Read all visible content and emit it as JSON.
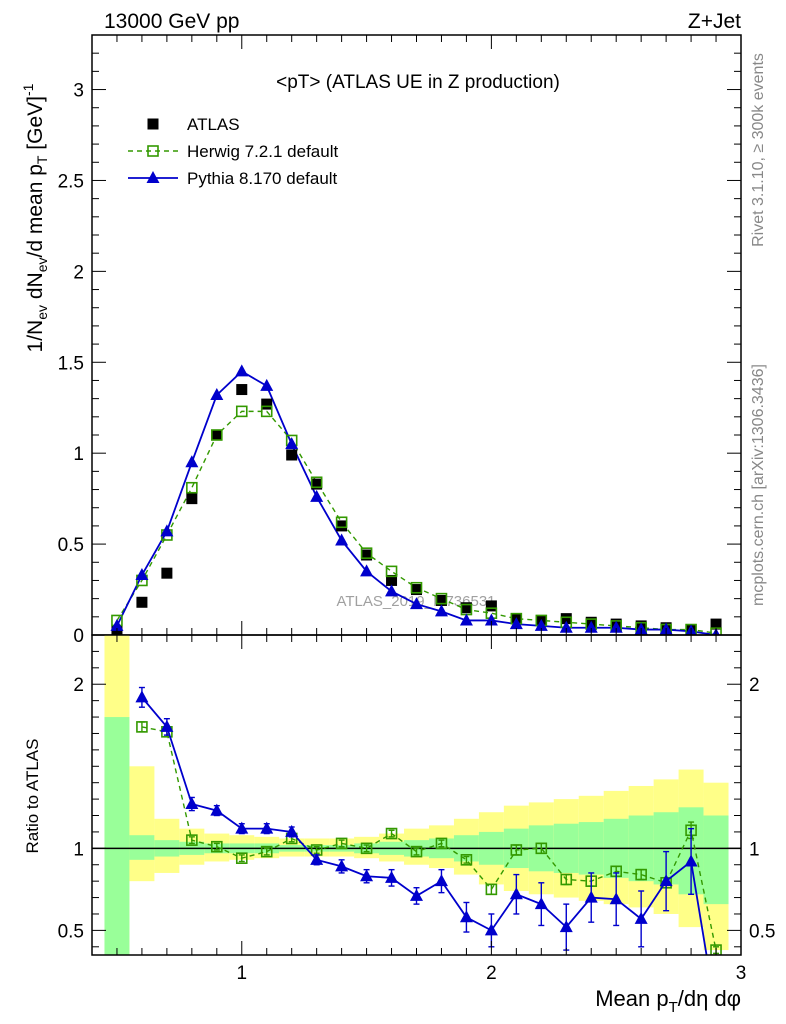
{
  "header": {
    "left": "13000 GeV pp",
    "right": "Z+Jet"
  },
  "side_text": {
    "rivet": "Rivet 3.1.10, ≥ 300k events",
    "mcplots": "mcplots.cern.ch [arXiv:1306.3436]"
  },
  "watermark": "ATLAS_2019_I1736531",
  "chart_data": [
    {
      "type": "scatter",
      "title": "<pT> (ATLAS UE in Z production)",
      "ylabel": "1/N_ev dN_ev/d mean p_T [GeV]^-1",
      "xlim": [
        0.4,
        3.0
      ],
      "ylim": [
        0,
        3.3
      ],
      "yticks": [
        0,
        0.5,
        1,
        1.5,
        2,
        2.5,
        3
      ],
      "ytick_labels": [
        "0",
        "0.5",
        "1",
        "1.5",
        "2",
        "2.5",
        "3"
      ],
      "legend": {
        "placement": "top-left",
        "entries": [
          "ATLAS",
          "Herwig 7.2.1 default",
          "Pythia 8.170 default"
        ]
      },
      "x": [
        0.5,
        0.6,
        0.7,
        0.8,
        0.9,
        1.0,
        1.1,
        1.2,
        1.3,
        1.4,
        1.5,
        1.6,
        1.7,
        1.8,
        1.9,
        2.0,
        2.1,
        2.2,
        2.3,
        2.4,
        2.5,
        2.6,
        2.7,
        2.8,
        2.9
      ],
      "series": [
        {
          "name": "ATLAS",
          "color": "#000000",
          "marker": "filled-square",
          "values": [
            0.02,
            0.18,
            0.34,
            0.75,
            1.1,
            1.35,
            1.27,
            0.99,
            0.83,
            0.6,
            0.44,
            0.3,
            0.25,
            0.19,
            0.15,
            0.16,
            0.09,
            0.08,
            0.09,
            0.07,
            0.06,
            0.05,
            0.04,
            0.03,
            0.06
          ]
        },
        {
          "name": "Herwig 7.2.1 default",
          "color": "#339900",
          "marker": "open-square",
          "line": "dashed",
          "values": [
            0.08,
            0.3,
            0.55,
            0.81,
            1.1,
            1.23,
            1.23,
            1.07,
            0.84,
            0.62,
            0.45,
            0.35,
            0.26,
            0.2,
            0.14,
            0.12,
            0.09,
            0.08,
            0.07,
            0.06,
            0.05,
            0.04,
            0.03,
            0.03,
            0.01
          ]
        },
        {
          "name": "Pythia 8.170 default",
          "color": "#0000cc",
          "marker": "filled-triangle",
          "line": "solid",
          "values": [
            0.05,
            0.33,
            0.57,
            0.95,
            1.32,
            1.45,
            1.37,
            1.05,
            0.76,
            0.52,
            0.35,
            0.24,
            0.17,
            0.13,
            0.08,
            0.08,
            0.06,
            0.05,
            0.04,
            0.04,
            0.04,
            0.03,
            0.03,
            0.02,
            0.0
          ]
        }
      ]
    },
    {
      "type": "line",
      "ylabel": "Ratio to ATLAS",
      "xlabel": "Mean p_T/dη dφ",
      "xlim": [
        0.4,
        3.0
      ],
      "ylim": [
        0.35,
        2.3
      ],
      "yticks": [
        0.5,
        1,
        2
      ],
      "ytick_labels": [
        "0.5",
        "1",
        "2"
      ],
      "xticks": [
        1,
        2,
        3
      ],
      "xtick_labels": [
        "1",
        "2",
        "3"
      ],
      "x": [
        0.6,
        0.7,
        0.8,
        0.9,
        1.0,
        1.1,
        1.2,
        1.3,
        1.4,
        1.5,
        1.6,
        1.7,
        1.8,
        1.9,
        2.0,
        2.1,
        2.2,
        2.3,
        2.4,
        2.5,
        2.6,
        2.7,
        2.8,
        2.9
      ],
      "bands": {
        "edges": [
          0.45,
          0.55,
          0.65,
          0.75,
          0.85,
          0.95,
          1.05,
          1.15,
          1.25,
          1.35,
          1.45,
          1.55,
          1.65,
          1.75,
          1.85,
          1.95,
          2.05,
          2.15,
          2.25,
          2.35,
          2.45,
          2.55,
          2.65,
          2.75,
          2.85,
          2.95
        ],
        "outer_color": "#ffff88",
        "inner_color": "#99ff99",
        "outer_lo": [
          0.0,
          0.8,
          0.85,
          0.9,
          0.92,
          0.93,
          0.94,
          0.95,
          0.95,
          0.95,
          0.94,
          0.92,
          0.9,
          0.88,
          0.84,
          0.78,
          0.74,
          0.72,
          0.7,
          0.68,
          0.66,
          0.64,
          0.6,
          0.52,
          0.38
        ],
        "outer_hi": [
          2.3,
          1.5,
          1.18,
          1.12,
          1.09,
          1.08,
          1.07,
          1.06,
          1.06,
          1.06,
          1.07,
          1.09,
          1.12,
          1.14,
          1.18,
          1.22,
          1.26,
          1.28,
          1.3,
          1.32,
          1.35,
          1.38,
          1.42,
          1.48,
          1.4
        ],
        "inner_lo": [
          0.35,
          0.93,
          0.95,
          0.96,
          0.97,
          0.97,
          0.97,
          0.98,
          0.98,
          0.98,
          0.97,
          0.96,
          0.95,
          0.94,
          0.92,
          0.9,
          0.88,
          0.86,
          0.85,
          0.84,
          0.82,
          0.8,
          0.78,
          0.72,
          0.66
        ],
        "inner_hi": [
          1.8,
          1.08,
          1.05,
          1.04,
          1.03,
          1.03,
          1.03,
          1.02,
          1.02,
          1.02,
          1.03,
          1.04,
          1.05,
          1.06,
          1.08,
          1.1,
          1.12,
          1.14,
          1.15,
          1.16,
          1.18,
          1.2,
          1.22,
          1.25,
          1.2
        ]
      },
      "series": [
        {
          "name": "Herwig 7.2.1 default",
          "color": "#339900",
          "values": [
            1.74,
            1.71,
            1.05,
            1.01,
            0.94,
            0.98,
            1.06,
            0.99,
            1.03,
            1.0,
            1.09,
            0.98,
            1.03,
            0.93,
            0.75,
            0.99,
            1.0,
            0.81,
            0.8,
            0.86,
            0.84,
            0.79,
            1.11,
            0.38
          ],
          "err": [
            0.03,
            0.03,
            0.02,
            0.02,
            0.02,
            0.02,
            0.02,
            0.02,
            0.02,
            0.02,
            0.02,
            0.02,
            0.02,
            0.02,
            0.03,
            0.03,
            0.03,
            0.03,
            0.03,
            0.03,
            0.03,
            0.03,
            0.05,
            0.02
          ]
        },
        {
          "name": "Pythia 8.170 default",
          "color": "#0000cc",
          "values": [
            1.92,
            1.74,
            1.27,
            1.23,
            1.12,
            1.12,
            1.1,
            0.93,
            0.89,
            0.83,
            0.82,
            0.71,
            0.8,
            0.58,
            0.5,
            0.72,
            0.66,
            0.52,
            0.7,
            0.69,
            0.57,
            0.8,
            0.92,
            0.0
          ],
          "err": [
            0.06,
            0.05,
            0.04,
            0.03,
            0.03,
            0.03,
            0.03,
            0.03,
            0.04,
            0.04,
            0.05,
            0.05,
            0.07,
            0.09,
            0.1,
            0.12,
            0.13,
            0.14,
            0.15,
            0.16,
            0.17,
            0.18,
            0.2,
            0.0
          ]
        }
      ]
    }
  ]
}
